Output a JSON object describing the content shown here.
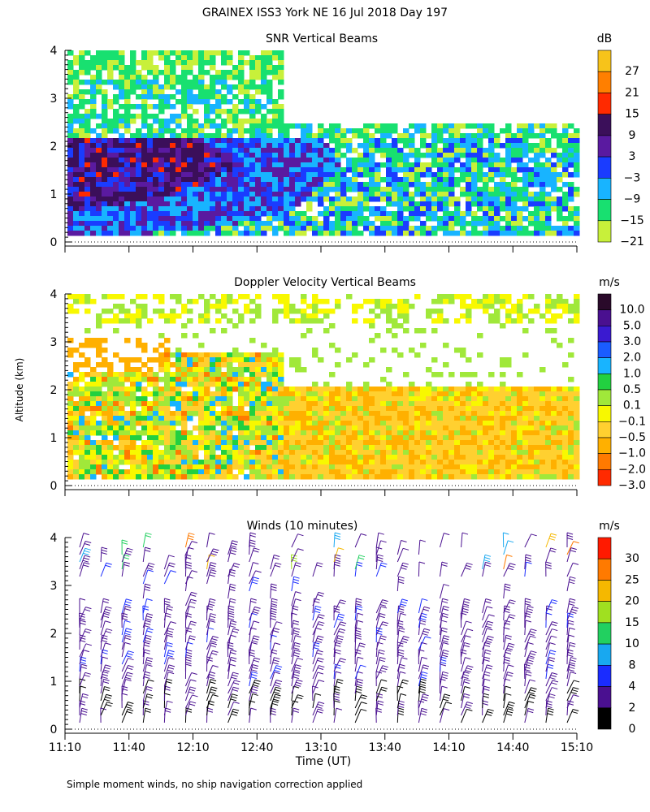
{
  "figure": {
    "title": "GRAINEX ISS3 York NE  16 Jul 2018 Day 197",
    "ylabel": "Altitude (km)",
    "xlabel": "Time (UT)",
    "footnote": "Simple moment winds, no ship navigation correction applied"
  },
  "chart_data": [
    {
      "type": "heatmap",
      "title": "SNR Vertical Beams",
      "colorbar_unit": "dB",
      "ylim": [
        0,
        4
      ],
      "yticks": [
        "0",
        "1",
        "2",
        "3",
        "4"
      ],
      "x_range": [
        "11:10",
        "15:10"
      ],
      "colorbar_levels": [
        "27",
        "21",
        "15",
        "9",
        "3",
        "−3",
        "−9",
        "−15",
        "−21"
      ],
      "colorbar_colors": [
        "#f7c31a",
        "#ff7f00",
        "#ff2a00",
        "#3b0f5a",
        "#5a1aa0",
        "#1a3cff",
        "#18b4ff",
        "#18e070",
        "#c8f03a"
      ],
      "grid": false
    },
    {
      "type": "heatmap",
      "title": "Doppler Velocity Vertical Beams",
      "colorbar_unit": "m/s",
      "ylim": [
        0,
        4
      ],
      "yticks": [
        "0",
        "1",
        "2",
        "3",
        "4"
      ],
      "x_range": [
        "11:10",
        "15:10"
      ],
      "colorbar_levels": [
        "10.0",
        "5.0",
        "3.0",
        "2.0",
        "1.0",
        "0.5",
        "0.1",
        "−0.1",
        "−0.5",
        "−1.0",
        "−2.0",
        "−3.0"
      ],
      "colorbar_colors": [
        "#2a0a2a",
        "#4a1090",
        "#3a1ad0",
        "#1a5cff",
        "#18b4ff",
        "#22d040",
        "#a0e83a",
        "#f8f800",
        "#ffd030",
        "#ffb000",
        "#ff7a00",
        "#ff2a00"
      ],
      "grid": false
    },
    {
      "type": "scatter",
      "title": "Winds (10 minutes)",
      "colorbar_unit": "m/s",
      "ylim": [
        0,
        4
      ],
      "yticks": [
        "0",
        "1",
        "2",
        "3",
        "4"
      ],
      "x_categories": [
        "11:10",
        "11:40",
        "12:10",
        "12:40",
        "13:10",
        "13:40",
        "14:10",
        "14:40",
        "15:10"
      ],
      "colorbar_levels": [
        "30",
        "25",
        "20",
        "15",
        "10",
        "8",
        "4",
        "2",
        "0"
      ],
      "colorbar_colors": [
        "#ff1a00",
        "#ff7a00",
        "#f5b800",
        "#a0e020",
        "#22d060",
        "#18a8f0",
        "#1a2cff",
        "#4a1090",
        "#000000"
      ],
      "grid": false
    }
  ]
}
